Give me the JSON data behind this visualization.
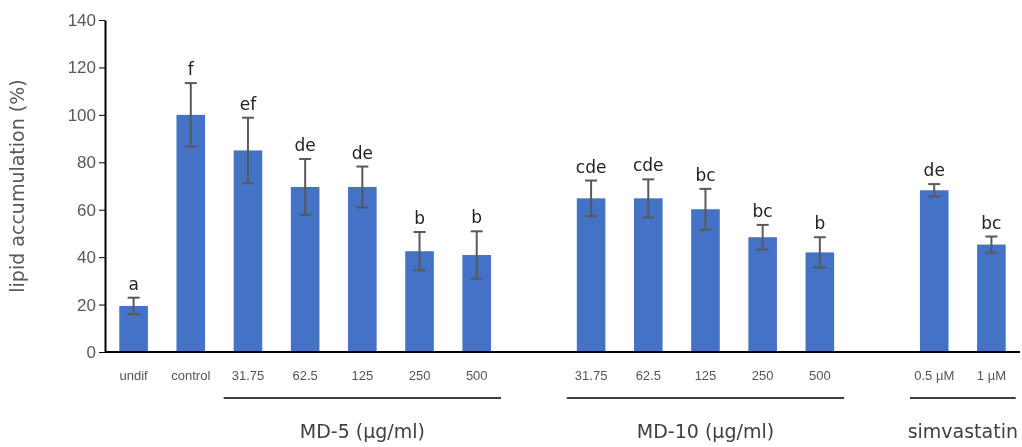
{
  "chart_data": {
    "type": "bar",
    "ylabel": "lipid accumulation (%)",
    "categories": [
      "undif",
      "control",
      "31.75",
      "62.5",
      "125",
      "250",
      "500",
      null,
      "31.75",
      "62.5",
      "125",
      "250",
      "500",
      null,
      "0.5 µM",
      "1 µM"
    ],
    "values": [
      19.4,
      100,
      85.0,
      69.6,
      69.6,
      42.5,
      40.9,
      null,
      64.8,
      64.8,
      60.2,
      48.4,
      42.0,
      null,
      68.2,
      45.3
    ],
    "errors": [
      3.5,
      13.4,
      13.8,
      11.8,
      8.6,
      8.1,
      10.0,
      null,
      7.5,
      8.0,
      8.6,
      5.2,
      6.4,
      null,
      2.6,
      3.4
    ],
    "value_labels": [
      "a",
      "f",
      "ef",
      "de",
      "de",
      "b",
      "b",
      null,
      "cde",
      "cde",
      "bc",
      "bc",
      "b",
      null,
      "de",
      "bc"
    ],
    "color": "#4472c4",
    "ylim": [
      0,
      140
    ],
    "yticks": [
      0,
      20,
      40,
      60,
      80,
      100,
      120,
      140
    ],
    "annotations": [
      "MD-5 (µg/ml)",
      "MD-10 (µg/ml)",
      "simvastatin"
    ]
  }
}
